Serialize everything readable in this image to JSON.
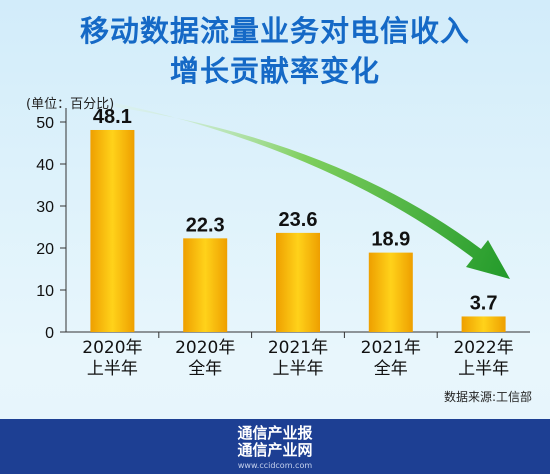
{
  "header": {
    "title_line1": "移动数据流量业务对电信收入",
    "title_line2": "增长贡献率变化"
  },
  "chart_data": {
    "type": "bar",
    "unit_label": "(单位：百分比)",
    "categories": [
      [
        "2020年",
        "上半年"
      ],
      [
        "2020年",
        "全年"
      ],
      [
        "2021年",
        "上半年"
      ],
      [
        "2021年",
        "全年"
      ],
      [
        "2022年",
        "上半年"
      ]
    ],
    "values": [
      48.1,
      22.3,
      23.6,
      18.9,
      3.7
    ],
    "value_labels": [
      "48.1",
      "22.3",
      "23.6",
      "18.9",
      "3.7"
    ],
    "y_ticks": [
      "0",
      "10",
      "20",
      "30",
      "40",
      "50"
    ],
    "ylim": [
      0,
      50
    ],
    "grid": false,
    "bar_color": "#f5b800",
    "arrow_color": "#2e9e2a",
    "trend_arrow": "downward"
  },
  "source": "数据来源:工信部",
  "footer": {
    "line1": "通信产业报",
    "line2": "通信产业网",
    "url": "www.ccidcom.com"
  }
}
